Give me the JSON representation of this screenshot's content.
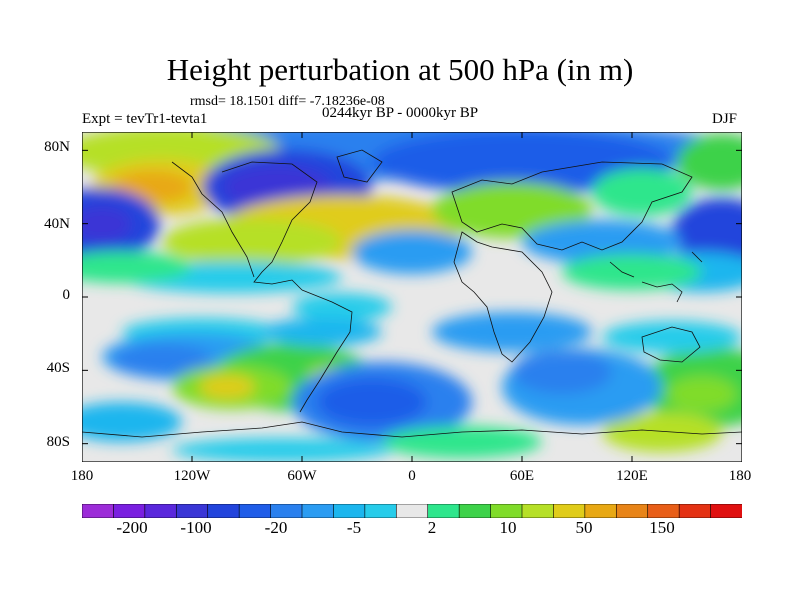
{
  "title": "Height perturbation at 500 hPa (in m)",
  "stats": "rmsd= 18.1501 diff= -7.18236e-08",
  "left_label": "Expt = tevTr1-tevta1",
  "center_label": "0244kyr BP - 0000kyr BP",
  "right_label": "DJF",
  "y_ticks": [
    "80N",
    "40N",
    "0",
    "40S",
    "80S"
  ],
  "x_ticks": [
    "180",
    "120W",
    "60W",
    "0",
    "60E",
    "120E",
    "180"
  ],
  "colorbar": {
    "labels": [
      "-200",
      "-100",
      "-20",
      "-5",
      "2",
      "10",
      "50",
      "150"
    ],
    "colors": [
      "#9c2cd8",
      "#7a1fe0",
      "#5a28dc",
      "#3a36d6",
      "#2244dc",
      "#1f5de8",
      "#2a80ee",
      "#2b9cf2",
      "#1cb6ee",
      "#27ccea",
      "#e8e8e8",
      "#2ee68c",
      "#3ed24a",
      "#80dc2a",
      "#b6e028",
      "#e0cc1a",
      "#e8a814",
      "#e88418",
      "#e85e18",
      "#e43214",
      "#e01010"
    ]
  },
  "chart_data": {
    "type": "heatmap",
    "title": "Height perturbation at 500 hPa (in m)",
    "x_range": [
      -180,
      180
    ],
    "y_range": [
      -90,
      90
    ],
    "x_ticks": [
      "180",
      "120W",
      "60W",
      "0",
      "60E",
      "120E",
      "180"
    ],
    "y_ticks": [
      "80N",
      "40N",
      "0",
      "40S",
      "80S"
    ],
    "levels": [
      -200,
      -100,
      -20,
      -5,
      2,
      10,
      50,
      150
    ]
  }
}
